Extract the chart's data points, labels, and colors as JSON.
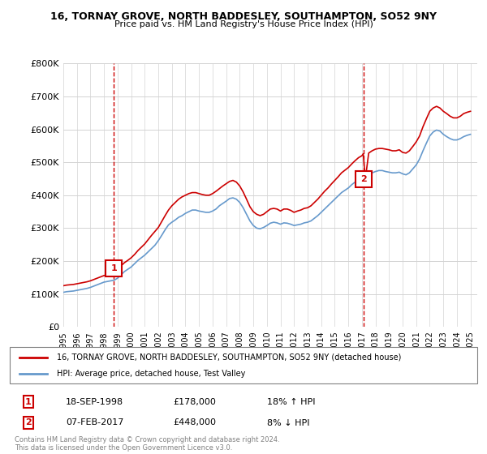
{
  "title": "16, TORNAY GROVE, NORTH BADDESLEY, SOUTHAMPTON, SO52 9NY",
  "subtitle": "Price paid vs. HM Land Registry's House Price Index (HPI)",
  "legend_line1": "16, TORNAY GROVE, NORTH BADDESLEY, SOUTHAMPTON, SO52 9NY (detached house)",
  "legend_line2": "HPI: Average price, detached house, Test Valley",
  "sale1_label": "1",
  "sale1_date": "18-SEP-1998",
  "sale1_price": "£178,000",
  "sale1_hpi": "18% ↑ HPI",
  "sale2_label": "2",
  "sale2_date": "07-FEB-2017",
  "sale2_price": "£448,000",
  "sale2_hpi": "8% ↓ HPI",
  "footer": "Contains HM Land Registry data © Crown copyright and database right 2024.\nThis data is licensed under the Open Government Licence v3.0.",
  "red_color": "#cc0000",
  "blue_color": "#6699cc",
  "marker_box_color": "#cc0000",
  "ylim": [
    0,
    800000
  ],
  "yticks": [
    0,
    100000,
    200000,
    300000,
    400000,
    500000,
    600000,
    700000,
    800000
  ],
  "ytick_labels": [
    "£0",
    "£100K",
    "£200K",
    "£300K",
    "£400K",
    "£500K",
    "£600K",
    "£700K",
    "£800K"
  ],
  "xmin": 1995.0,
  "xmax": 2025.5,
  "sale1_x": 1998.72,
  "sale1_y": 178000,
  "sale2_x": 2017.1,
  "sale2_y": 448000,
  "hpi_x": [
    1995.0,
    1995.25,
    1995.5,
    1995.75,
    1996.0,
    1996.25,
    1996.5,
    1996.75,
    1997.0,
    1997.25,
    1997.5,
    1997.75,
    1998.0,
    1998.25,
    1998.5,
    1998.75,
    1999.0,
    1999.25,
    1999.5,
    1999.75,
    2000.0,
    2000.25,
    2000.5,
    2000.75,
    2001.0,
    2001.25,
    2001.5,
    2001.75,
    2002.0,
    2002.25,
    2002.5,
    2002.75,
    2003.0,
    2003.25,
    2003.5,
    2003.75,
    2004.0,
    2004.25,
    2004.5,
    2004.75,
    2005.0,
    2005.25,
    2005.5,
    2005.75,
    2006.0,
    2006.25,
    2006.5,
    2006.75,
    2007.0,
    2007.25,
    2007.5,
    2007.75,
    2008.0,
    2008.25,
    2008.5,
    2008.75,
    2009.0,
    2009.25,
    2009.5,
    2009.75,
    2010.0,
    2010.25,
    2010.5,
    2010.75,
    2011.0,
    2011.25,
    2011.5,
    2011.75,
    2012.0,
    2012.25,
    2012.5,
    2012.75,
    2013.0,
    2013.25,
    2013.5,
    2013.75,
    2014.0,
    2014.25,
    2014.5,
    2014.75,
    2015.0,
    2015.25,
    2015.5,
    2015.75,
    2016.0,
    2016.25,
    2016.5,
    2016.75,
    2017.0,
    2017.25,
    2017.5,
    2017.75,
    2018.0,
    2018.25,
    2018.5,
    2018.75,
    2019.0,
    2019.25,
    2019.5,
    2019.75,
    2020.0,
    2020.25,
    2020.5,
    2020.75,
    2021.0,
    2021.25,
    2021.5,
    2021.75,
    2022.0,
    2022.25,
    2022.5,
    2022.75,
    2023.0,
    2023.25,
    2023.5,
    2023.75,
    2024.0,
    2024.25,
    2024.5,
    2024.75,
    2025.0
  ],
  "hpi_y": [
    105000,
    107000,
    108000,
    109000,
    111000,
    113000,
    115000,
    117000,
    120000,
    124000,
    128000,
    132000,
    136000,
    138000,
    140000,
    142000,
    148000,
    158000,
    168000,
    175000,
    182000,
    192000,
    202000,
    210000,
    218000,
    228000,
    238000,
    248000,
    262000,
    278000,
    295000,
    310000,
    318000,
    325000,
    333000,
    338000,
    345000,
    350000,
    355000,
    355000,
    352000,
    350000,
    348000,
    348000,
    352000,
    358000,
    368000,
    375000,
    382000,
    390000,
    392000,
    388000,
    378000,
    362000,
    342000,
    322000,
    308000,
    300000,
    298000,
    302000,
    308000,
    315000,
    318000,
    316000,
    312000,
    316000,
    315000,
    312000,
    308000,
    310000,
    312000,
    316000,
    318000,
    322000,
    330000,
    338000,
    348000,
    358000,
    368000,
    378000,
    388000,
    398000,
    408000,
    415000,
    422000,
    432000,
    440000,
    448000,
    452000,
    458000,
    462000,
    468000,
    472000,
    475000,
    475000,
    472000,
    470000,
    468000,
    468000,
    470000,
    465000,
    462000,
    468000,
    480000,
    492000,
    510000,
    535000,
    558000,
    580000,
    592000,
    598000,
    595000,
    585000,
    578000,
    572000,
    568000,
    568000,
    572000,
    578000,
    582000,
    585000
  ],
  "red_x": [
    1995.0,
    1995.25,
    1995.5,
    1995.75,
    1996.0,
    1996.25,
    1996.5,
    1996.75,
    1997.0,
    1997.25,
    1997.5,
    1997.75,
    1998.0,
    1998.25,
    1998.5,
    1998.72,
    1999.0,
    1999.25,
    1999.5,
    1999.75,
    2000.0,
    2000.25,
    2000.5,
    2000.75,
    2001.0,
    2001.25,
    2001.5,
    2001.75,
    2002.0,
    2002.25,
    2002.5,
    2002.75,
    2003.0,
    2003.25,
    2003.5,
    2003.75,
    2004.0,
    2004.25,
    2004.5,
    2004.75,
    2005.0,
    2005.25,
    2005.5,
    2005.75,
    2006.0,
    2006.25,
    2006.5,
    2006.75,
    2007.0,
    2007.25,
    2007.5,
    2007.75,
    2008.0,
    2008.25,
    2008.5,
    2008.75,
    2009.0,
    2009.25,
    2009.5,
    2009.75,
    2010.0,
    2010.25,
    2010.5,
    2010.75,
    2011.0,
    2011.25,
    2011.5,
    2011.75,
    2012.0,
    2012.25,
    2012.5,
    2012.75,
    2013.0,
    2013.25,
    2013.5,
    2013.75,
    2014.0,
    2014.25,
    2014.5,
    2014.75,
    2015.0,
    2015.25,
    2015.5,
    2015.75,
    2016.0,
    2016.25,
    2016.5,
    2016.75,
    2017.0,
    2017.1,
    2017.25,
    2017.5,
    2017.75,
    2018.0,
    2018.25,
    2018.5,
    2018.75,
    2019.0,
    2019.25,
    2019.5,
    2019.75,
    2020.0,
    2020.25,
    2020.5,
    2020.75,
    2021.0,
    2021.25,
    2021.5,
    2021.75,
    2022.0,
    2022.25,
    2022.5,
    2022.75,
    2023.0,
    2023.25,
    2023.5,
    2023.75,
    2024.0,
    2024.25,
    2024.5,
    2024.75,
    2025.0
  ],
  "red_y": [
    125000,
    127000,
    128000,
    129000,
    131000,
    133000,
    135000,
    137000,
    140000,
    144000,
    148000,
    152000,
    156000,
    158000,
    160000,
    178000,
    175000,
    185000,
    195000,
    202000,
    210000,
    220000,
    232000,
    242000,
    252000,
    265000,
    278000,
    290000,
    302000,
    320000,
    338000,
    355000,
    368000,
    378000,
    388000,
    395000,
    400000,
    405000,
    408000,
    408000,
    405000,
    402000,
    400000,
    400000,
    405000,
    412000,
    420000,
    428000,
    435000,
    442000,
    445000,
    440000,
    428000,
    410000,
    388000,
    365000,
    350000,
    342000,
    338000,
    342000,
    350000,
    358000,
    360000,
    358000,
    352000,
    358000,
    358000,
    354000,
    348000,
    352000,
    355000,
    360000,
    362000,
    368000,
    378000,
    388000,
    400000,
    412000,
    422000,
    434000,
    445000,
    456000,
    468000,
    476000,
    484000,
    495000,
    505000,
    514000,
    520000,
    526000,
    448000,
    528000,
    535000,
    540000,
    542000,
    542000,
    540000,
    538000,
    535000,
    535000,
    538000,
    530000,
    528000,
    535000,
    548000,
    562000,
    580000,
    608000,
    632000,
    655000,
    665000,
    670000,
    665000,
    655000,
    648000,
    640000,
    635000,
    635000,
    640000,
    648000,
    652000,
    655000
  ]
}
